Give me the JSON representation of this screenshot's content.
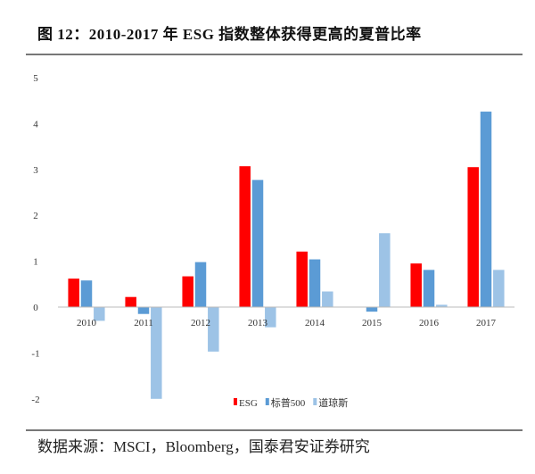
{
  "title": "图 12：2010-2017 年 ESG 指数整体获得更高的夏普比率",
  "source": "数据来源：MSCI，Bloomberg，国泰君安证券研究",
  "chart_data": {
    "type": "bar",
    "title": "图 12：2010-2017 年 ESG 指数整体获得更高的夏普比率",
    "xlabel": "",
    "ylabel": "",
    "ylim": [
      -2,
      5
    ],
    "yticks": [
      "-2",
      "-1",
      "0",
      "1",
      "2",
      "3",
      "4",
      "5"
    ],
    "grid": false,
    "legend_position": "bottom",
    "categories": [
      "2010",
      "2011",
      "2012",
      "2013",
      "2014",
      "2015",
      "2016",
      "2017"
    ],
    "series": [
      {
        "name": "ESG",
        "color": "#ff0000",
        "values": [
          0.62,
          0.22,
          0.67,
          3.07,
          1.21,
          0.0,
          0.95,
          3.05
        ]
      },
      {
        "name": "标普500",
        "color": "#5b9bd5",
        "values": [
          0.58,
          -0.15,
          0.98,
          2.77,
          1.04,
          -0.1,
          0.81,
          4.26
        ]
      },
      {
        "name": "道琼斯",
        "color": "#9dc3e6",
        "values": [
          -0.3,
          -2.0,
          -0.97,
          -0.44,
          0.34,
          1.61,
          0.05,
          0.81
        ]
      }
    ]
  }
}
